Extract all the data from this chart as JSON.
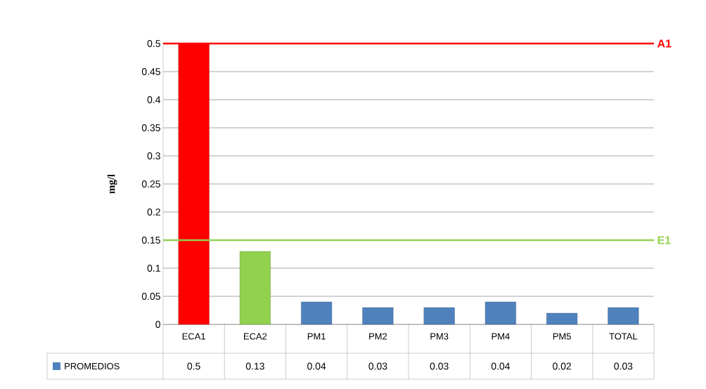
{
  "chart_data": {
    "type": "bar",
    "ylabel": "mg/l",
    "categories": [
      "ECA1",
      "ECA2",
      "PM1",
      "PM2",
      "PM3",
      "PM4",
      "PM5",
      "TOTAL"
    ],
    "series": [
      {
        "name": "PROMEDIOS",
        "values": [
          0.5,
          0.13,
          0.04,
          0.03,
          0.03,
          0.04,
          0.02,
          0.03
        ],
        "colors": [
          "#ff0000",
          "#92d050",
          "#4f81bd",
          "#4f81bd",
          "#4f81bd",
          "#4f81bd",
          "#4f81bd",
          "#4f81bd"
        ]
      }
    ],
    "ylim": [
      0,
      0.5
    ],
    "yticks": [
      0,
      0.05,
      0.1,
      0.15,
      0.2,
      0.25,
      0.3,
      0.35,
      0.4,
      0.45,
      0.5
    ],
    "grid": "y",
    "data_labels": true,
    "legend": "bottom",
    "ref_lines": [
      {
        "axis": "y",
        "value": 0.5,
        "label": "A1",
        "color": "#ff0000"
      },
      {
        "axis": "y",
        "value": 0.15,
        "label": "E1",
        "color": "#92d050"
      }
    ]
  }
}
